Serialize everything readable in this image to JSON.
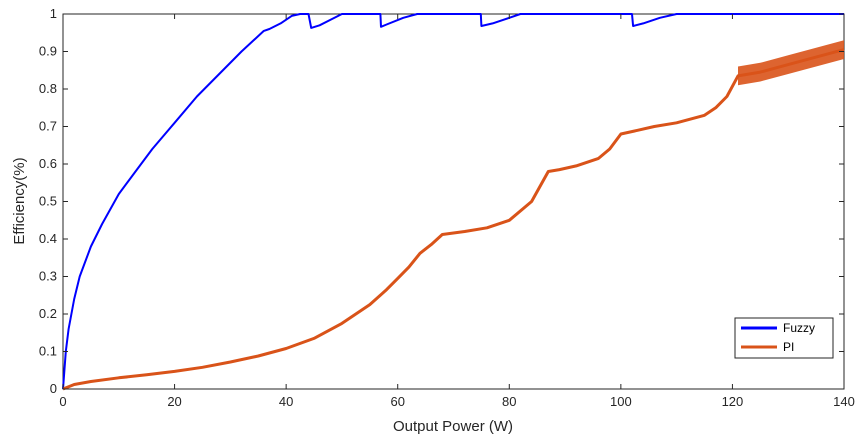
{
  "chart_data": {
    "type": "line",
    "title": "",
    "xlabel": "Output Power (W)",
    "ylabel": "Efficiency(%)",
    "xlim": [
      0,
      140
    ],
    "ylim": [
      0,
      1
    ],
    "xticks": [
      "0",
      "20",
      "40",
      "60",
      "80",
      "100",
      "120",
      "140"
    ],
    "yticks": [
      "0",
      "0.1",
      "0.2",
      "0.3",
      "0.4",
      "0.5",
      "0.6",
      "0.7",
      "0.8",
      "0.9",
      "1"
    ],
    "grid": false,
    "legend_position": "bottom-right",
    "series": [
      {
        "name": "Fuzzy",
        "color": "#0000ff",
        "x": [
          0,
          0.5,
          1,
          2,
          3,
          5,
          7,
          10,
          13,
          16,
          20,
          24,
          28,
          32,
          36,
          37,
          39,
          41,
          42.5,
          44,
          44.5,
          46,
          48,
          50,
          56.9,
          57,
          58,
          61,
          63.5,
          74.9,
          75,
          77,
          80,
          82,
          102,
          102.2,
          104,
          107,
          110,
          140
        ],
        "y": [
          0,
          0.1,
          0.16,
          0.24,
          0.3,
          0.38,
          0.44,
          0.52,
          0.58,
          0.64,
          0.71,
          0.78,
          0.84,
          0.9,
          0.955,
          0.96,
          0.975,
          0.995,
          1.0,
          1.0,
          0.963,
          0.97,
          0.985,
          1.0,
          1.0,
          0.966,
          0.972,
          0.99,
          1.0,
          1.0,
          0.968,
          0.975,
          0.99,
          1.0,
          1.0,
          0.968,
          0.975,
          0.99,
          1.0,
          1.0
        ]
      },
      {
        "name": "PI",
        "color": "#d95319",
        "x": [
          0,
          2,
          5,
          10,
          15,
          20,
          25,
          30,
          35,
          40,
          45,
          50,
          55,
          58,
          60,
          62,
          64,
          66,
          68,
          72,
          76,
          80,
          84,
          87,
          89,
          92,
          96,
          98,
          100,
          103,
          106,
          110,
          115,
          117,
          119,
          121,
          125,
          130,
          135,
          140
        ],
        "y": [
          0.0,
          0.012,
          0.02,
          0.03,
          0.038,
          0.047,
          0.058,
          0.072,
          0.088,
          0.108,
          0.135,
          0.175,
          0.225,
          0.265,
          0.295,
          0.325,
          0.362,
          0.385,
          0.412,
          0.42,
          0.43,
          0.45,
          0.5,
          0.58,
          0.585,
          0.595,
          0.615,
          0.64,
          0.68,
          0.69,
          0.7,
          0.71,
          0.73,
          0.75,
          0.78,
          0.835,
          0.845,
          0.865,
          0.885,
          0.905
        ]
      }
    ]
  }
}
